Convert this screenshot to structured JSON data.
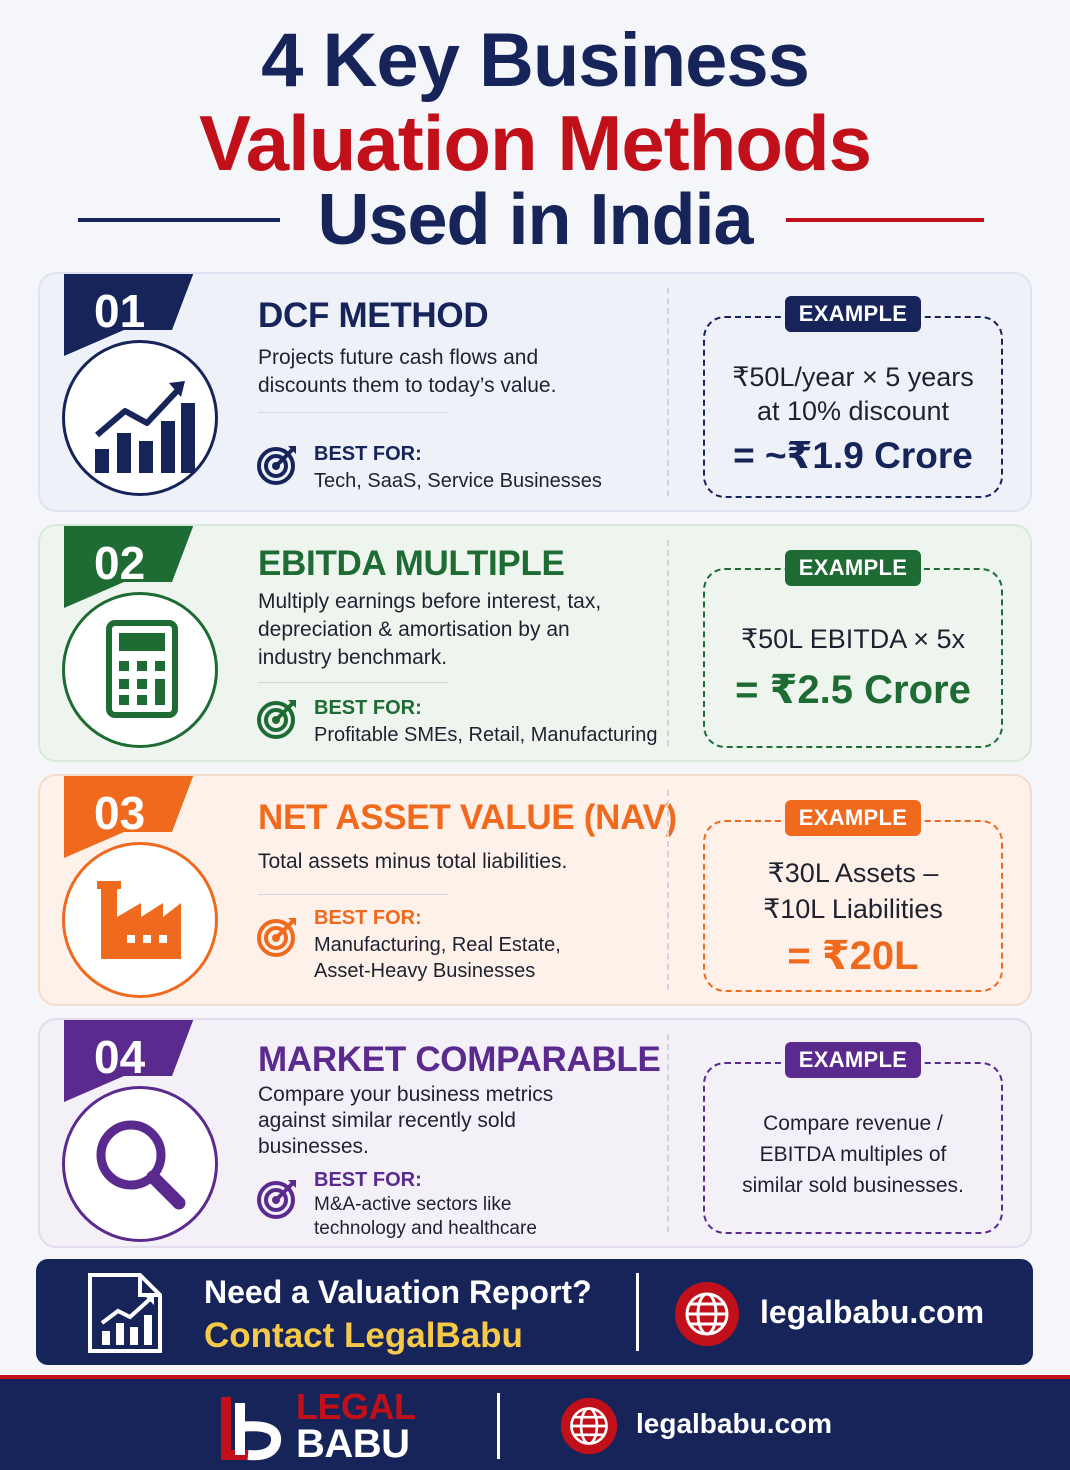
{
  "header": {
    "line1": "4 Key Business",
    "line2": "Valuation Methods",
    "line3": "Used in India"
  },
  "colors": {
    "navy": "#16245a",
    "red": "#c2101a",
    "green": "#1e6b34",
    "orange": "#f06a1e",
    "purple": "#5b2a8e",
    "gold": "#f7c948"
  },
  "methods": [
    {
      "number": "01",
      "title": "DCF METHOD",
      "icon": "bar-chart-growth-icon",
      "description": [
        "Projects future cash flows and",
        "discounts them to today’s value."
      ],
      "best_for_label": "BEST FOR:",
      "best_for": [
        "Tech, SaaS, Service Businesses"
      ],
      "example_label": "EXAMPLE",
      "example_lines": [
        "₹50L/year × 5 years",
        "at 10% discount"
      ],
      "example_result": "= ~₹1.9 Crore"
    },
    {
      "number": "02",
      "title": "EBITDA MULTIPLE",
      "icon": "calculator-icon",
      "description": [
        "Multiply earnings before interest, tax,",
        "depreciation & amortisation by an",
        "industry benchmark."
      ],
      "best_for_label": "BEST FOR:",
      "best_for": [
        "Profitable SMEs, Retail, Manufacturing"
      ],
      "example_label": "EXAMPLE",
      "example_lines": [
        "₹50L EBITDA × 5x"
      ],
      "example_result": "= ₹2.5 Crore"
    },
    {
      "number": "03",
      "title": "NET ASSET VALUE (NAV)",
      "icon": "factory-icon",
      "description": [
        "Total assets minus total liabilities."
      ],
      "best_for_label": "BEST FOR:",
      "best_for": [
        "Manufacturing, Real Estate,",
        "Asset-Heavy Businesses"
      ],
      "example_label": "EXAMPLE",
      "example_lines": [
        "₹30L Assets –",
        "₹10L Liabilities"
      ],
      "example_result": "= ₹20L"
    },
    {
      "number": "04",
      "title": "MARKET COMPARABLE",
      "icon": "magnifier-icon",
      "description": [
        "Compare your business metrics",
        "against similar recently sold",
        "businesses."
      ],
      "best_for_label": "BEST FOR:",
      "best_for": [
        "M&A-active sectors like",
        "technology and healthcare"
      ],
      "example_label": "EXAMPLE",
      "example_lines": [
        "Compare revenue /",
        "EBITDA multiples of",
        "similar sold businesses."
      ],
      "example_result": ""
    }
  ],
  "cta": {
    "question": "Need a Valuation Report?",
    "action": "Contact LegalBabu",
    "website": "legalbabu.com"
  },
  "footer": {
    "brand_top": "LEGAL",
    "brand_bottom": "BABU",
    "website": "legalbabu.com"
  }
}
